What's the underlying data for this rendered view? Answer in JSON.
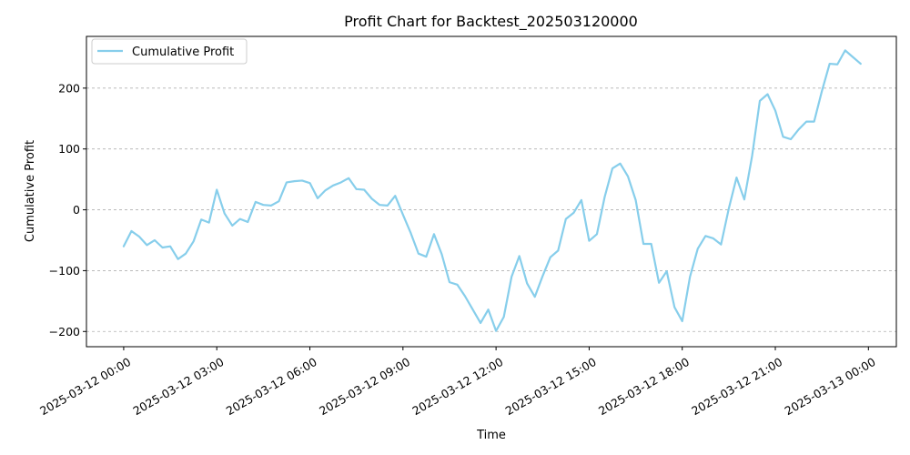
{
  "chart_data": {
    "type": "line",
    "title": "Profit Chart for Backtest_202503120000",
    "xlabel": "Time",
    "ylabel": "Cumulative Profit",
    "x_range_hours": [
      -1.2,
      24.9
    ],
    "ylim": [
      -225,
      285
    ],
    "grid": "y-dashed",
    "legend_position": "top-left",
    "x_ticks": [
      {
        "label": "2025-03-12 00:00",
        "hour": 0
      },
      {
        "label": "2025-03-12 03:00",
        "hour": 3
      },
      {
        "label": "2025-03-12 06:00",
        "hour": 6
      },
      {
        "label": "2025-03-12 09:00",
        "hour": 9
      },
      {
        "label": "2025-03-12 12:00",
        "hour": 12
      },
      {
        "label": "2025-03-12 15:00",
        "hour": 15
      },
      {
        "label": "2025-03-12 18:00",
        "hour": 18
      },
      {
        "label": "2025-03-12 21:00",
        "hour": 21
      },
      {
        "label": "2025-03-13 00:00",
        "hour": 24
      }
    ],
    "y_ticks": [
      {
        "label": "−200",
        "value": -200
      },
      {
        "label": "−100",
        "value": -100
      },
      {
        "label": "0",
        "value": 0
      },
      {
        "label": "100",
        "value": 100
      },
      {
        "label": "200",
        "value": 200
      }
    ],
    "series": [
      {
        "name": "Cumulative Profit",
        "color": "#87ceeb",
        "x_step_hours": 0.25,
        "values": [
          -60,
          -35,
          -44,
          -58,
          -50,
          -62,
          -60,
          -81,
          -72,
          -52,
          -16,
          -21,
          33,
          -6,
          -26,
          -15,
          -20,
          13,
          8,
          7,
          14,
          45,
          47,
          48,
          44,
          19,
          32,
          40,
          45,
          52,
          34,
          33,
          18,
          8,
          7,
          23,
          -8,
          -38,
          -72,
          -77,
          -40,
          -73,
          -119,
          -123,
          -142,
          -164,
          -186,
          -164,
          -199,
          -176,
          -110,
          -76,
          -121,
          -143,
          -109,
          -78,
          -67,
          -15,
          -5,
          16,
          -51,
          -40,
          21,
          68,
          76,
          55,
          16,
          -56,
          -56,
          -120,
          -101,
          -160,
          -183,
          -110,
          -64,
          -43,
          -47,
          -57,
          2,
          53,
          17,
          88,
          179,
          190,
          163,
          120,
          116,
          132,
          145,
          145,
          195,
          240,
          239,
          262,
          251,
          240
        ]
      }
    ]
  }
}
